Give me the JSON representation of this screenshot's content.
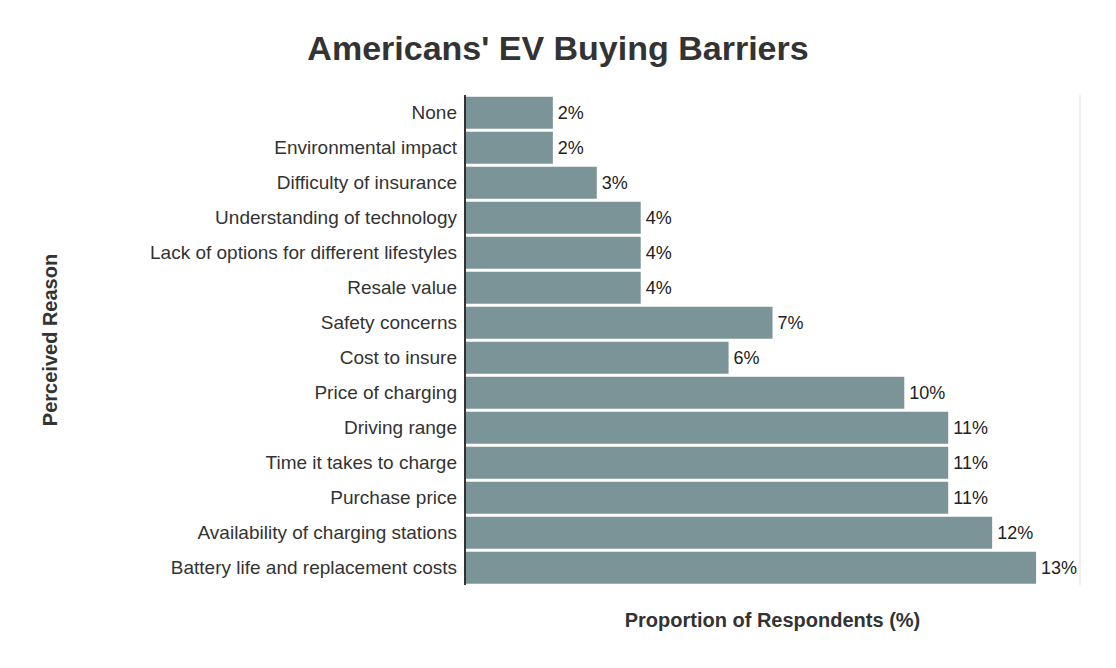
{
  "chart_data": {
    "type": "bar",
    "title": "Americans' EV Buying Barriers",
    "x_label": "Proportion of Respondents (%)",
    "y_label": "Perceived Reason",
    "categories": [
      "None",
      "Environmental impact",
      "Difficulty of insurance",
      "Understanding of technology",
      "Lack of options for different lifestyles",
      "Resale value",
      "Safety concerns",
      "Cost to insure",
      "Price of charging",
      "Driving range",
      "Time it takes to charge",
      "Purchase price",
      "Availability of charging stations",
      "Battery life and replacement costs"
    ],
    "values": [
      2,
      2,
      3,
      4,
      4,
      4,
      7,
      6,
      10,
      11,
      11,
      11,
      12,
      13
    ],
    "value_labels": [
      "2%",
      "2%",
      "3%",
      "4%",
      "4%",
      "4%",
      "7%",
      "6%",
      "10%",
      "11%",
      "11%",
      "11%",
      "12%",
      "13%"
    ],
    "color": "#7b9497",
    "orientation": "horizontal",
    "xlim": [
      0,
      14
    ],
    "xticks": [
      0,
      2,
      4,
      6,
      8,
      10,
      12,
      14
    ],
    "grid": true,
    "data_labels": true,
    "tick_labels": "y"
  }
}
